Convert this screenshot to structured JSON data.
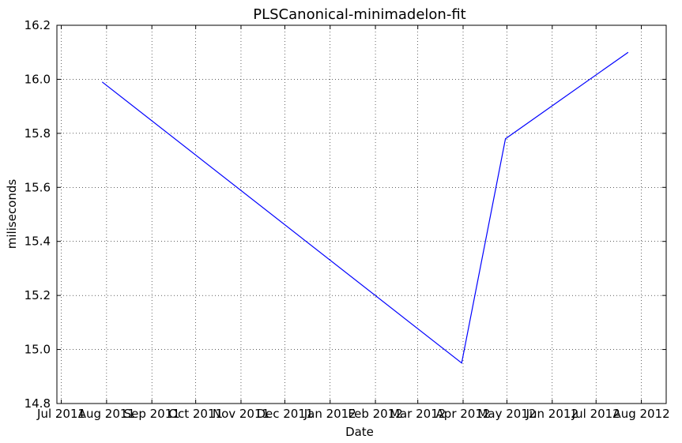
{
  "chart_data": {
    "type": "line",
    "title": "PLSCanonical-minimadelon-fit",
    "xlabel": "Date",
    "ylabel": "miliseconds",
    "x_axis": {
      "ticks": [
        "2011-07-01",
        "2011-08-01",
        "2011-09-01",
        "2011-10-01",
        "2011-11-01",
        "2011-12-01",
        "2012-01-01",
        "2012-02-01",
        "2012-03-01",
        "2012-04-01",
        "2012-05-01",
        "2012-06-01",
        "2012-07-01",
        "2012-08-01"
      ],
      "tick_labels": [
        "Jul 2011",
        "Aug 2011",
        "Sep 2011",
        "Oct 2011",
        "Nov 2011",
        "Dec 2011",
        "Jan 2012",
        "Feb 2012",
        "Mar 2012",
        "Apr 2012",
        "May 2012",
        "Jun 2012",
        "Jul 2012",
        "Aug 2012"
      ],
      "xlim": [
        "2011-06-28",
        "2012-08-18"
      ]
    },
    "y_axis": {
      "ylim": [
        14.8,
        16.2
      ],
      "ticks": [
        14.8,
        15.0,
        15.2,
        15.4,
        15.6,
        15.8,
        16.0,
        16.2
      ],
      "tick_labels": [
        "14.8",
        "15.0",
        "15.2",
        "15.4",
        "15.6",
        "15.8",
        "16.0",
        "16.2"
      ]
    },
    "grid": true,
    "series": [
      {
        "color": "#0000ff",
        "x": [
          "2011-07-29",
          "2012-03-31",
          "2012-04-30",
          "2012-07-23"
        ],
        "y": [
          15.99,
          14.95,
          15.78,
          16.1
        ]
      }
    ]
  }
}
